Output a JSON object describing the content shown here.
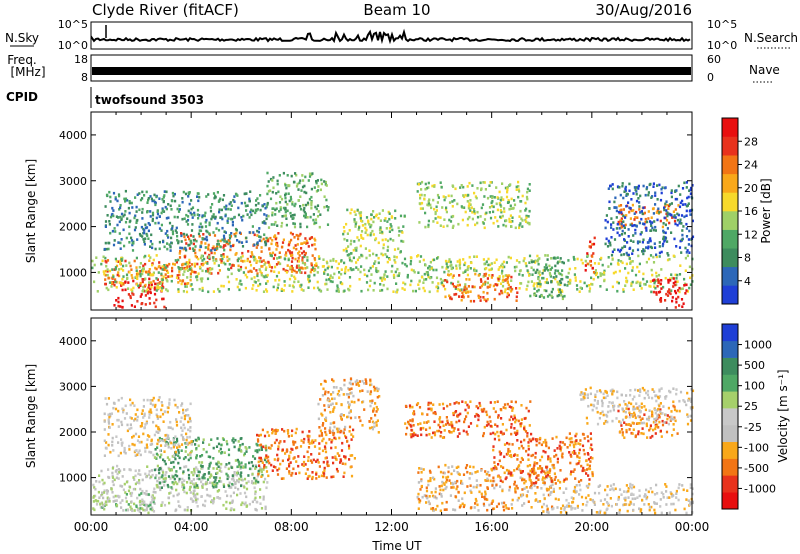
{
  "header": {
    "station": "Clyde River (fitACF)",
    "beam": "Beam 10",
    "date": "30/Aug/2016"
  },
  "colors": {
    "power_scale": [
      "#1f3fd6",
      "#2c67b8",
      "#3d8c5e",
      "#4fa865",
      "#9fd067",
      "#f7d92b",
      "#f9a81a",
      "#f27515",
      "#e8321c",
      "#e80f0f"
    ],
    "velocity_scale": [
      "#1f3fd6",
      "#2c67b8",
      "#3d8c5e",
      "#4fa865",
      "#a6d06b",
      "#c8c8c8",
      "#c0c0c0",
      "#f9a81a",
      "#f27515",
      "#e8321c",
      "#e80f0f"
    ]
  },
  "chart_data": [
    {
      "type": "line",
      "panel": "nsky-nsearch",
      "left_label": "N.Sky",
      "right_label": "N.Search",
      "left_ticks": [
        "10^5",
        "10^0"
      ],
      "right_ticks": [
        "10^5",
        "10^0"
      ],
      "scale": "log"
    },
    {
      "type": "line",
      "panel": "freq-nave",
      "left_label": "Freq.",
      "left_unit": "[MHz]",
      "right_label": "Nave",
      "left_ticks": [
        "18",
        "8"
      ],
      "right_ticks": [
        "60",
        "0"
      ],
      "freq_value_mhz": 10.5
    },
    {
      "type": "table",
      "panel": "cpid",
      "label": "CPID",
      "program": "twofsound 3503"
    },
    {
      "type": "heatmap",
      "panel": "power",
      "ylabel": "Slant Range [km]",
      "colorbar_label": "Power [dB]",
      "colorbar_ticks": [
        "4",
        "8",
        "12",
        "16",
        "20",
        "24",
        "28"
      ],
      "y_ticks": [
        "1000",
        "2000",
        "3000",
        "4000"
      ],
      "ylim": [
        180,
        4500
      ],
      "xlim": [
        "00:00",
        "24:00"
      ],
      "blobs": [
        {
          "x": [
            0.8,
            2.9
          ],
          "y": [
            250,
            900
          ],
          "level": 9
        },
        {
          "x": [
            0.5,
            4.0
          ],
          "y": [
            750,
            1300
          ],
          "level": 7
        },
        {
          "x": [
            3.5,
            9.0
          ],
          "y": [
            1000,
            1900
          ],
          "level": 7
        },
        {
          "x": [
            0.0,
            24.0
          ],
          "y": [
            600,
            1400
          ],
          "level": 4
        },
        {
          "x": [
            0.5,
            7.0
          ],
          "y": [
            1500,
            2800
          ],
          "level": 2
        },
        {
          "x": [
            7.0,
            9.5
          ],
          "y": [
            2000,
            3200
          ],
          "level": 3
        },
        {
          "x": [
            10.0,
            12.5
          ],
          "y": [
            1400,
            2400
          ],
          "level": 4
        },
        {
          "x": [
            13.0,
            17.5
          ],
          "y": [
            2000,
            3000
          ],
          "level": 4
        },
        {
          "x": [
            14.0,
            17.0
          ],
          "y": [
            400,
            1000
          ],
          "level": 7
        },
        {
          "x": [
            17.5,
            19.0
          ],
          "y": [
            400,
            1400
          ],
          "level": 3
        },
        {
          "x": [
            19.7,
            20.1
          ],
          "y": [
            1000,
            1900
          ],
          "level": 8
        },
        {
          "x": [
            21.0,
            23.5
          ],
          "y": [
            2000,
            2500
          ],
          "level": 7
        },
        {
          "x": [
            22.4,
            23.8
          ],
          "y": [
            250,
            900
          ],
          "level": 9
        },
        {
          "x": [
            20.5,
            24.0
          ],
          "y": [
            1400,
            3000
          ],
          "level": 1
        }
      ]
    },
    {
      "type": "heatmap",
      "panel": "velocity",
      "ylabel": "Slant Range [km]",
      "colorbar_label": "Velocity [m s⁻¹]",
      "colorbar_ticks": [
        "1000",
        "500",
        "100",
        "25",
        "-25",
        "-100",
        "-500",
        "-1000"
      ],
      "y_ticks": [
        "1000",
        "2000",
        "3000",
        "4000"
      ],
      "ylim": [
        180,
        4500
      ],
      "xlim": [
        "00:00",
        "24:00"
      ],
      "xlabel": "Time UT",
      "x_ticks": [
        "00:00",
        "04:00",
        "08:00",
        "12:00",
        "16:00",
        "20:00",
        "00:00"
      ],
      "blobs": [
        {
          "x": [
            0.0,
            7.0
          ],
          "y": [
            300,
            1300
          ],
          "level": 5
        },
        {
          "x": [
            2.5,
            7.0
          ],
          "y": [
            800,
            1900
          ],
          "level": 3
        },
        {
          "x": [
            0.3,
            2.5
          ],
          "y": [
            250,
            700
          ],
          "level": 4
        },
        {
          "x": [
            0.5,
            4.0
          ],
          "y": [
            1500,
            2800
          ],
          "level": 6
        },
        {
          "x": [
            6.5,
            10.5
          ],
          "y": [
            1000,
            2100
          ],
          "level": 8
        },
        {
          "x": [
            9.0,
            11.5
          ],
          "y": [
            2000,
            3200
          ],
          "level": 7
        },
        {
          "x": [
            12.5,
            17.5
          ],
          "y": [
            1900,
            2700
          ],
          "level": 8
        },
        {
          "x": [
            13.0,
            18.5
          ],
          "y": [
            300,
            1300
          ],
          "level": 7
        },
        {
          "x": [
            16.0,
            20.0
          ],
          "y": [
            900,
            2000
          ],
          "level": 8
        },
        {
          "x": [
            18.0,
            24.0
          ],
          "y": [
            250,
            900
          ],
          "level": 6
        },
        {
          "x": [
            21.0,
            23.5
          ],
          "y": [
            1900,
            2600
          ],
          "level": 8
        },
        {
          "x": [
            19.5,
            24.0
          ],
          "y": [
            2200,
            3000
          ],
          "level": 6
        }
      ]
    }
  ]
}
